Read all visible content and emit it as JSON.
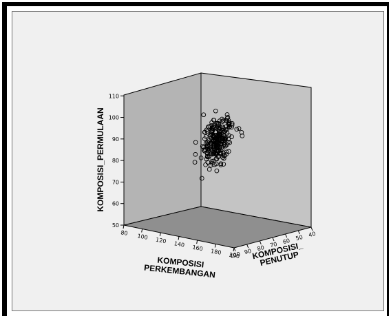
{
  "chart_data": {
    "type": "scatter",
    "title": "",
    "axes": {
      "vertical": {
        "label": "KOMPOSISI_PERMULAAN",
        "ticks": [
          "50",
          "60",
          "70",
          "80",
          "90",
          "100",
          "110"
        ],
        "range": [
          50,
          112
        ]
      },
      "left_depth": {
        "label_line1": "KOMPOSISI",
        "label_line2": "PERKEMBANGAN",
        "ticks": [
          "80",
          "100",
          "120",
          "140",
          "160",
          "180",
          "200"
        ],
        "range": [
          80,
          200
        ]
      },
      "right_depth": {
        "label_line1": "KOMPOSISI_",
        "label_line2": "PENUTUP",
        "ticks": [
          "100",
          "90",
          "80",
          "70",
          "60",
          "50",
          "40"
        ],
        "range": [
          100,
          40
        ]
      }
    },
    "points_note": "approx. 250 observations; vertical values mostly 68-104, clustered near perkembangan 180-200 and penutup 80-100",
    "grid": false,
    "legend": "none",
    "colors": {
      "back_walls": "#b4b4b4",
      "floor": "#8f8f8f",
      "marker_stroke": "#000000",
      "background": "#f0f0f0"
    }
  }
}
